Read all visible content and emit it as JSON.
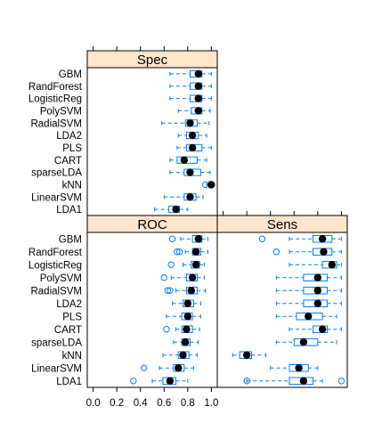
{
  "chart_data": {
    "type": "bwplot",
    "xlim": [
      -0.05,
      1.05
    ],
    "x_ticks": [
      0.0,
      0.2,
      0.4,
      0.6,
      0.8,
      1.0
    ],
    "x_tick_labels": [
      "0.0",
      "0.2",
      "0.4",
      "0.6",
      "0.8",
      "1.0"
    ],
    "colors": {
      "strip": "#ffe5cc",
      "box": "#0080ff",
      "median": "#000000"
    },
    "panels": [
      {
        "name": "Spec",
        "categories": [
          "GBM",
          "RandForest",
          "LogisticReg",
          "PolySVM",
          "RadialSVM",
          "LDA2",
          "PLS",
          "CART",
          "sparseLDA",
          "kNN",
          "LinearSVM",
          "LDA1"
        ],
        "stats": [
          {
            "min": 0.65,
            "q1": 0.82,
            "median": 0.89,
            "q3": 0.92,
            "max": 1.0,
            "outliers": []
          },
          {
            "min": 0.65,
            "q1": 0.82,
            "median": 0.89,
            "q3": 0.92,
            "max": 1.0,
            "outliers": []
          },
          {
            "min": 0.65,
            "q1": 0.82,
            "median": 0.89,
            "q3": 0.92,
            "max": 1.0,
            "outliers": []
          },
          {
            "min": 0.72,
            "q1": 0.83,
            "median": 0.89,
            "q3": 0.92,
            "max": 0.99,
            "outliers": []
          },
          {
            "min": 0.58,
            "q1": 0.78,
            "median": 0.82,
            "q3": 0.88,
            "max": 0.98,
            "outliers": []
          },
          {
            "min": 0.72,
            "q1": 0.79,
            "median": 0.84,
            "q3": 0.89,
            "max": 0.96,
            "outliers": []
          },
          {
            "min": 0.71,
            "q1": 0.79,
            "median": 0.84,
            "q3": 0.92,
            "max": 1.0,
            "outliers": []
          },
          {
            "min": 0.65,
            "q1": 0.71,
            "median": 0.77,
            "q3": 0.88,
            "max": 0.96,
            "outliers": []
          },
          {
            "min": 0.65,
            "q1": 0.77,
            "median": 0.82,
            "q3": 0.91,
            "max": 0.99,
            "outliers": []
          },
          {
            "min": 0.96,
            "q1": 0.98,
            "median": 1.0,
            "q3": 1.0,
            "max": 1.0,
            "outliers": [
              0.95
            ]
          },
          {
            "min": 0.6,
            "q1": 0.77,
            "median": 0.82,
            "q3": 0.87,
            "max": 0.93,
            "outliers": []
          },
          {
            "min": 0.52,
            "q1": 0.64,
            "median": 0.7,
            "q3": 0.73,
            "max": 0.8,
            "outliers": []
          }
        ]
      },
      {
        "name": "ROC",
        "categories": [
          "GBM",
          "RandForest",
          "LogisticReg",
          "PolySVM",
          "RadialSVM",
          "LDA2",
          "PLS",
          "CART",
          "sparseLDA",
          "kNN",
          "LinearSVM",
          "LDA1"
        ],
        "stats": [
          {
            "min": 0.74,
            "q1": 0.84,
            "median": 0.89,
            "q3": 0.92,
            "max": 0.97,
            "outliers": [
              0.67
            ]
          },
          {
            "min": 0.78,
            "q1": 0.84,
            "median": 0.87,
            "q3": 0.91,
            "max": 0.97,
            "outliers": [
              0.71,
              0.73
            ]
          },
          {
            "min": 0.76,
            "q1": 0.83,
            "median": 0.87,
            "q3": 0.9,
            "max": 0.94,
            "outliers": [
              0.66
            ]
          },
          {
            "min": 0.66,
            "q1": 0.79,
            "median": 0.84,
            "q3": 0.88,
            "max": 0.94,
            "outliers": [
              0.6
            ]
          },
          {
            "min": 0.7,
            "q1": 0.79,
            "median": 0.83,
            "q3": 0.88,
            "max": 0.95,
            "outliers": [
              0.63,
              0.65
            ]
          },
          {
            "min": 0.67,
            "q1": 0.76,
            "median": 0.8,
            "q3": 0.85,
            "max": 0.91,
            "outliers": []
          },
          {
            "min": 0.62,
            "q1": 0.75,
            "median": 0.8,
            "q3": 0.84,
            "max": 0.91,
            "outliers": []
          },
          {
            "min": 0.7,
            "q1": 0.75,
            "median": 0.79,
            "q3": 0.84,
            "max": 0.9,
            "outliers": [
              0.62
            ]
          },
          {
            "min": 0.68,
            "q1": 0.75,
            "median": 0.78,
            "q3": 0.82,
            "max": 0.89,
            "outliers": []
          },
          {
            "min": 0.59,
            "q1": 0.72,
            "median": 0.76,
            "q3": 0.81,
            "max": 0.88,
            "outliers": []
          },
          {
            "min": 0.56,
            "q1": 0.68,
            "median": 0.72,
            "q3": 0.77,
            "max": 0.85,
            "outliers": [
              0.43
            ]
          },
          {
            "min": 0.5,
            "q1": 0.59,
            "median": 0.65,
            "q3": 0.7,
            "max": 0.8,
            "outliers": [
              0.34
            ]
          }
        ]
      },
      {
        "name": "Sens",
        "categories": [
          "GBM",
          "RandForest",
          "LogisticReg",
          "PolySVM",
          "RadialSVM",
          "LDA2",
          "PLS",
          "CART",
          "sparseLDA",
          "kNN",
          "LinearSVM",
          "LDA1"
        ],
        "stats": [
          {
            "min": 0.56,
            "q1": 0.76,
            "median": 0.84,
            "q3": 0.92,
            "max": 1.0,
            "outliers": [
              0.33
            ]
          },
          {
            "min": 0.56,
            "q1": 0.76,
            "median": 0.85,
            "q3": 0.92,
            "max": 1.0,
            "outliers": [
              0.45
            ]
          },
          {
            "min": 0.56,
            "q1": 0.84,
            "median": 0.92,
            "q3": 0.96,
            "max": 1.0,
            "outliers": []
          },
          {
            "min": 0.45,
            "q1": 0.68,
            "median": 0.8,
            "q3": 0.88,
            "max": 1.0,
            "outliers": []
          },
          {
            "min": 0.45,
            "q1": 0.68,
            "median": 0.8,
            "q3": 0.88,
            "max": 1.0,
            "outliers": []
          },
          {
            "min": 0.45,
            "q1": 0.68,
            "median": 0.8,
            "q3": 0.88,
            "max": 1.0,
            "outliers": []
          },
          {
            "min": 0.45,
            "q1": 0.62,
            "median": 0.72,
            "q3": 0.84,
            "max": 0.96,
            "outliers": []
          },
          {
            "min": 0.56,
            "q1": 0.76,
            "median": 0.84,
            "q3": 0.88,
            "max": 1.0,
            "outliers": []
          },
          {
            "min": 0.45,
            "q1": 0.6,
            "median": 0.68,
            "q3": 0.8,
            "max": 0.96,
            "outliers": []
          },
          {
            "min": 0.08,
            "q1": 0.14,
            "median": 0.2,
            "q3": 0.24,
            "max": 0.36,
            "outliers": []
          },
          {
            "min": 0.4,
            "q1": 0.56,
            "median": 0.64,
            "q3": 0.72,
            "max": 0.8,
            "outliers": []
          },
          {
            "min": 0.2,
            "q1": 0.56,
            "median": 0.68,
            "q3": 0.76,
            "max": 0.84,
            "outliers": [
              0.2,
              1.0
            ]
          }
        ]
      }
    ]
  }
}
